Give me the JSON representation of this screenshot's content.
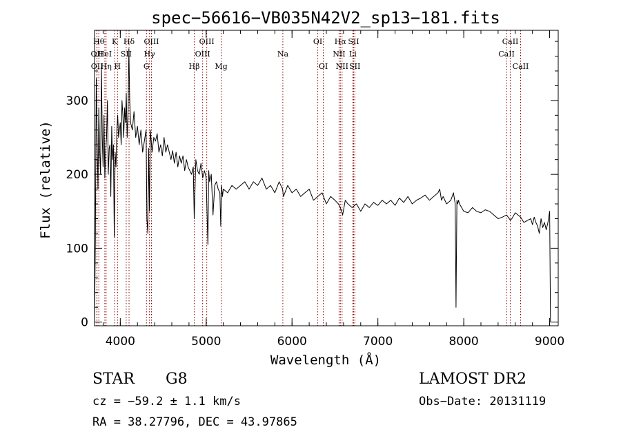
{
  "chart_data": {
    "type": "line",
    "title": "spec−56616−VB035N42V2_sp13−181.fits",
    "xlabel": "Wavelength (Å)",
    "ylabel": "Flux (relative)",
    "xlim": [
      3700,
      9100
    ],
    "ylim": [
      -5,
      395
    ],
    "xticks": [
      4000,
      5000,
      6000,
      7000,
      8000,
      9000
    ],
    "yticks": [
      0,
      100,
      200,
      300
    ],
    "x_tick_labels": [
      "4000",
      "5000",
      "6000",
      "7000",
      "8000",
      "9000"
    ],
    "y_tick_labels": [
      "0",
      "100",
      "200",
      "300"
    ],
    "grid": false,
    "line_color": "#000000",
    "marker_color": "#8b0000",
    "line_markers": [
      {
        "label": "Hθ",
        "wavelength": 3750,
        "row": 0
      },
      {
        "label": "OII",
        "wavelength": 3727,
        "row": 1
      },
      {
        "label": "OII",
        "wavelength": 3729,
        "row": 2
      },
      {
        "label": "HeI",
        "wavelength": 3820,
        "row": 1
      },
      {
        "label": "Hη",
        "wavelength": 3835,
        "row": 2
      },
      {
        "label": "K",
        "wavelength": 3934,
        "row": 0
      },
      {
        "label": "SII",
        "wavelength": 4069,
        "row": 1
      },
      {
        "label": "H",
        "wavelength": 3968,
        "row": 2
      },
      {
        "label": "Hδ",
        "wavelength": 4102,
        "row": 0
      },
      {
        "label": "OIII",
        "wavelength": 4363,
        "row": 0
      },
      {
        "label": "Hγ",
        "wavelength": 4340,
        "row": 1
      },
      {
        "label": "G",
        "wavelength": 4305,
        "row": 2
      },
      {
        "label": "Hβ",
        "wavelength": 4861,
        "row": 2
      },
      {
        "label": "OIII",
        "wavelength": 5007,
        "row": 0
      },
      {
        "label": "OIII",
        "wavelength": 4959,
        "row": 1
      },
      {
        "label": "Mg",
        "wavelength": 5175,
        "row": 2
      },
      {
        "label": "Na",
        "wavelength": 5893,
        "row": 1
      },
      {
        "label": "OI",
        "wavelength": 6300,
        "row": 0
      },
      {
        "label": "OI",
        "wavelength": 6364,
        "row": 2
      },
      {
        "label": "Hα",
        "wavelength": 6563,
        "row": 0
      },
      {
        "label": "NII",
        "wavelength": 6548,
        "row": 1
      },
      {
        "label": "NII",
        "wavelength": 6583,
        "row": 2
      },
      {
        "label": "SII",
        "wavelength": 6717,
        "row": 0
      },
      {
        "label": "Li",
        "wavelength": 6708,
        "row": 1
      },
      {
        "label": "SII",
        "wavelength": 6731,
        "row": 2
      },
      {
        "label": "CaII",
        "wavelength": 8542,
        "row": 0
      },
      {
        "label": "CaII",
        "wavelength": 8498,
        "row": 1
      },
      {
        "label": "CaII",
        "wavelength": 8662,
        "row": 2
      }
    ],
    "series": [
      {
        "x": [
          3700,
          3710,
          3720,
          3730,
          3740,
          3750,
          3760,
          3770,
          3780,
          3790,
          3800,
          3810,
          3820,
          3830,
          3840,
          3850,
          3860,
          3870,
          3880,
          3890,
          3900,
          3910,
          3920,
          3930,
          3940,
          3950,
          3960,
          3970,
          3980,
          3990,
          4000,
          4010,
          4020,
          4030,
          4040,
          4050,
          4060,
          4070,
          4080,
          4090,
          4100,
          4110,
          4120,
          4140,
          4160,
          4180,
          4200,
          4220,
          4240,
          4260,
          4280,
          4300,
          4310,
          4320,
          4330,
          4340,
          4350,
          4370,
          4390,
          4410,
          4430,
          4450,
          4470,
          4490,
          4510,
          4530,
          4550,
          4570,
          4590,
          4610,
          4630,
          4650,
          4670,
          4690,
          4710,
          4730,
          4750,
          4770,
          4790,
          4810,
          4830,
          4850,
          4861,
          4880,
          4900,
          4920,
          4940,
          4960,
          4980,
          5000,
          5010,
          5020,
          5030,
          5040,
          5060,
          5080,
          5100,
          5120,
          5140,
          5160,
          5170,
          5180,
          5190,
          5200,
          5250,
          5300,
          5350,
          5400,
          5450,
          5500,
          5550,
          5600,
          5650,
          5700,
          5750,
          5800,
          5850,
          5890,
          5900,
          5950,
          6000,
          6050,
          6100,
          6150,
          6200,
          6250,
          6300,
          6350,
          6400,
          6450,
          6500,
          6540,
          6563,
          6590,
          6620,
          6650,
          6700,
          6750,
          6800,
          6850,
          6900,
          6950,
          7000,
          7050,
          7100,
          7150,
          7200,
          7250,
          7300,
          7350,
          7400,
          7450,
          7500,
          7550,
          7600,
          7650,
          7700,
          7720,
          7740,
          7760,
          7800,
          7850,
          7880,
          7900,
          7910,
          7920,
          7930,
          7940,
          7950,
          8000,
          8050,
          8100,
          8150,
          8200,
          8250,
          8300,
          8350,
          8400,
          8450,
          8498,
          8542,
          8560,
          8600,
          8662,
          8700,
          8750,
          8780,
          8800,
          8820,
          8840,
          8860,
          8880,
          8900,
          8920,
          8940,
          8960,
          8980,
          9000,
          9010
        ],
        "y": [
          0,
          112,
          330,
          250,
          180,
          290,
          230,
          200,
          345,
          250,
          210,
          280,
          195,
          230,
          250,
          300,
          200,
          235,
          240,
          170,
          265,
          220,
          240,
          115,
          230,
          210,
          260,
          280,
          250,
          260,
          270,
          240,
          300,
          280,
          250,
          290,
          270,
          310,
          250,
          280,
          370,
          300,
          270,
          260,
          285,
          250,
          265,
          240,
          260,
          230,
          245,
          260,
          140,
          120,
          235,
          150,
          260,
          230,
          250,
          245,
          255,
          230,
          240,
          225,
          250,
          230,
          240,
          230,
          220,
          232,
          215,
          230,
          210,
          225,
          215,
          225,
          205,
          220,
          210,
          205,
          200,
          210,
          140,
          220,
          205,
          200,
          215,
          195,
          205,
          195,
          150,
          105,
          205,
          190,
          200,
          145,
          185,
          190,
          180,
          175,
          130,
          185,
          170,
          180,
          175,
          185,
          180,
          185,
          190,
          180,
          190,
          185,
          195,
          180,
          185,
          175,
          190,
          180,
          170,
          185,
          175,
          180,
          170,
          175,
          180,
          165,
          170,
          175,
          160,
          170,
          165,
          160,
          155,
          145,
          165,
          160,
          155,
          160,
          150,
          160,
          155,
          162,
          158,
          165,
          160,
          165,
          158,
          168,
          162,
          170,
          160,
          165,
          168,
          172,
          165,
          170,
          175,
          180,
          165,
          170,
          160,
          165,
          175,
          160,
          20,
          165,
          160,
          165,
          160,
          150,
          148,
          155,
          150,
          148,
          152,
          150,
          145,
          140,
          142,
          145,
          138,
          140,
          148,
          142,
          135,
          138,
          140,
          132,
          142,
          135,
          130,
          120,
          140,
          128,
          135,
          125,
          135,
          150,
          0
        ]
      }
    ]
  },
  "info": {
    "object_class": "STAR",
    "subclass": "G8",
    "survey": "LAMOST DR2",
    "velocity": "cz = −59.2 ± 1.1 km/s",
    "obs_date": "Obs−Date: 20131119",
    "coordinates": "RA =  38.27796, DEC =  43.97865"
  }
}
